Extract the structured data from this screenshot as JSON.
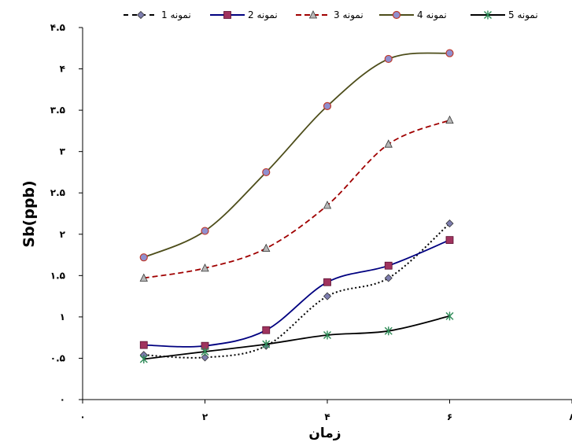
{
  "chart_data": {
    "type": "line",
    "title": "",
    "xlabel": "زمان",
    "ylabel": "Sb(ppb)",
    "xlim": [
      0,
      8
    ],
    "ylim": [
      0,
      4.5
    ],
    "x_ticks": [
      0,
      2,
      4,
      6,
      8
    ],
    "x_tick_labels": [
      "۰",
      "۲",
      "۴",
      "۶",
      "۸"
    ],
    "y_ticks": [
      0,
      0.5,
      1,
      1.5,
      2,
      2.5,
      3,
      3.5,
      4,
      4.5
    ],
    "y_tick_labels": [
      "۰",
      "۰.۵",
      "۱",
      "۱.۵",
      "۲",
      "۲.۵",
      "۳",
      "۳.۵",
      "۴",
      "۴.۵"
    ],
    "x": [
      1,
      2,
      3,
      4,
      5,
      6
    ],
    "grid": false,
    "legend_position": "top",
    "series": [
      {
        "name": "نمونه 1",
        "values": [
          0.54,
          0.51,
          0.65,
          1.25,
          1.47,
          2.13
        ],
        "color": "#000000",
        "marker_color": "#7d7dae",
        "line_style": "dotted",
        "marker": "diamond"
      },
      {
        "name": "نمونه 2",
        "values": [
          0.66,
          0.65,
          0.84,
          1.42,
          1.62,
          1.93
        ],
        "color": "#000080",
        "marker_color": "#a0335e",
        "line_style": "solid",
        "marker": "square"
      },
      {
        "name": "نمونه 3",
        "values": [
          1.47,
          1.59,
          1.83,
          2.35,
          3.09,
          3.38
        ],
        "color": "#a00000",
        "marker_color": "#b8b8b8",
        "line_style": "dashed",
        "marker": "triangle"
      },
      {
        "name": "نمونه 4",
        "values": [
          1.72,
          2.04,
          2.75,
          3.55,
          4.12,
          4.19
        ],
        "color": "#4d4d1a",
        "marker_color": "#8f8fcf",
        "line_style": "solid",
        "marker": "circle"
      },
      {
        "name": "نمونه 5",
        "values": [
          0.49,
          0.58,
          0.67,
          0.78,
          0.83,
          1.01
        ],
        "color": "#000000",
        "marker_color": "#2e8b57",
        "line_style": "solid",
        "marker": "asterisk"
      }
    ]
  }
}
